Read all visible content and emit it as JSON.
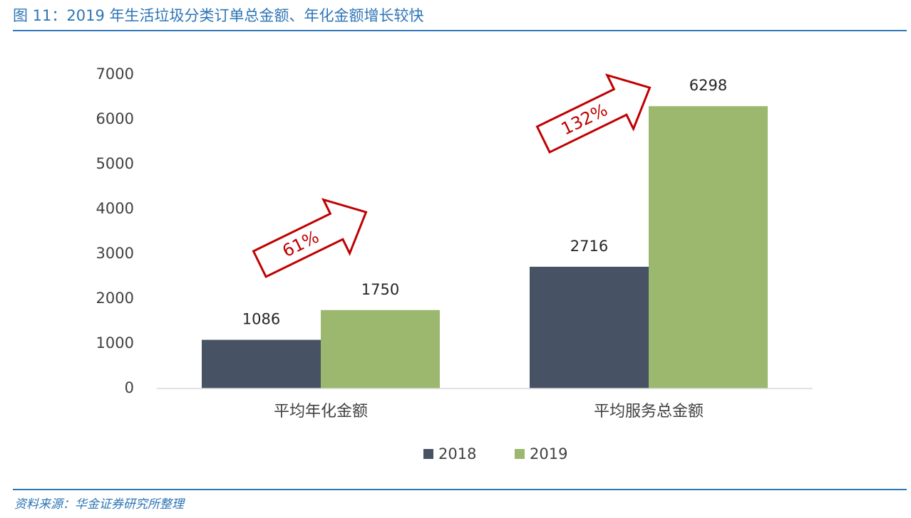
{
  "chart_data": {
    "type": "bar",
    "title": "图 11：2019 年生活垃圾分类订单总金额、年化金额增长较快",
    "categories": [
      "平均年化金额",
      "平均服务总金额"
    ],
    "series": [
      {
        "name": "2018",
        "color": "#475364",
        "values": [
          1086,
          2716
        ]
      },
      {
        "name": "2019",
        "color": "#9cb86f",
        "values": [
          1750,
          6298
        ]
      }
    ],
    "ylim": [
      0,
      7000
    ],
    "yticks": [
      0,
      1000,
      2000,
      3000,
      4000,
      5000,
      6000,
      7000
    ],
    "grid": false,
    "annotations": [
      "61%",
      "132%"
    ],
    "source": "资料来源：华金证券研究所整理"
  }
}
